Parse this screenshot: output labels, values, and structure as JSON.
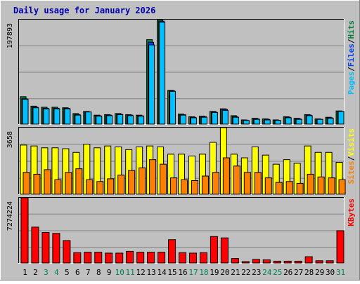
{
  "title": "Daily usage for January 2026",
  "colors": {
    "background": "#C0C0C0",
    "plot": "#C0C0C0",
    "title": "#0000B0",
    "hits": "#008040",
    "files": "#0040FF",
    "pages": "#00C0FF",
    "visits": "#FFFF00",
    "sites": "#FF8000",
    "kbytes": "#FF0000",
    "weekend_day": "#00805C",
    "weekday_day": "#000000"
  },
  "chart_data": [
    {
      "type": "bar",
      "panel": "hits-files-pages",
      "axis_max_label": "197893",
      "ylim": [
        0,
        197893
      ],
      "legend": [
        {
          "name": "Pages",
          "color": "#00C0FF"
        },
        {
          "name": "Files",
          "color": "#0040FF"
        },
        {
          "name": "Hits",
          "color": "#008040"
        }
      ],
      "legend_separator": "/",
      "categories": [
        "1",
        "2",
        "3",
        "4",
        "5",
        "6",
        "7",
        "8",
        "9",
        "10",
        "11",
        "12",
        "13",
        "14",
        "15",
        "16",
        "17",
        "18",
        "19",
        "20",
        "21",
        "22",
        "23",
        "24",
        "25",
        "26",
        "27",
        "28",
        "29",
        "30",
        "31"
      ],
      "series": [
        {
          "name": "Hits",
          "values": [
            52000,
            34000,
            32000,
            32000,
            31000,
            20000,
            24000,
            17000,
            18000,
            20000,
            18000,
            17000,
            160000,
            197893,
            64000,
            19000,
            14000,
            15000,
            24000,
            29000,
            16000,
            8000,
            11000,
            10000,
            8000,
            14000,
            11000,
            18000,
            10000,
            13000,
            25000
          ]
        },
        {
          "name": "Files",
          "values": [
            48000,
            32000,
            30000,
            30000,
            30000,
            18000,
            23000,
            16000,
            17000,
            19000,
            17000,
            16000,
            155000,
            195000,
            63000,
            18000,
            13000,
            14000,
            23000,
            28000,
            14000,
            7000,
            10000,
            9000,
            7000,
            13000,
            10000,
            17000,
            9000,
            12000,
            24000
          ]
        },
        {
          "name": "Pages",
          "values": [
            47000,
            31000,
            29000,
            29000,
            29000,
            17000,
            23000,
            15000,
            16000,
            18000,
            16000,
            15000,
            150000,
            193000,
            62000,
            17000,
            12000,
            13000,
            22000,
            26000,
            13000,
            7000,
            9000,
            8000,
            7000,
            12000,
            9000,
            16000,
            9000,
            11000,
            24000
          ]
        }
      ]
    },
    {
      "type": "bar",
      "panel": "visits-sites",
      "axis_max_label": "3658",
      "ylim": [
        0,
        3658
      ],
      "legend": [
        {
          "name": "Sites",
          "color": "#FF8000"
        },
        {
          "name": "Visits",
          "color": "#FFFF00"
        }
      ],
      "legend_separator": "/",
      "categories": [
        "1",
        "2",
        "3",
        "4",
        "5",
        "6",
        "7",
        "8",
        "9",
        "10",
        "11",
        "12",
        "13",
        "14",
        "15",
        "16",
        "17",
        "18",
        "19",
        "20",
        "21",
        "22",
        "23",
        "24",
        "25",
        "26",
        "27",
        "28",
        "29",
        "30",
        "31"
      ],
      "series": [
        {
          "name": "Visits",
          "values": [
            2700,
            2650,
            2550,
            2550,
            2500,
            2300,
            2750,
            2550,
            2650,
            2600,
            2450,
            2600,
            2650,
            2600,
            2200,
            2200,
            2100,
            2200,
            2850,
            3658,
            2200,
            2000,
            2600,
            2150,
            1650,
            1900,
            1700,
            2650,
            2300,
            2300,
            1750
          ]
        },
        {
          "name": "Sites",
          "values": [
            1200,
            1100,
            1350,
            800,
            1200,
            1400,
            800,
            700,
            850,
            1050,
            1300,
            1450,
            1900,
            1650,
            900,
            800,
            750,
            1000,
            1200,
            2000,
            1550,
            1200,
            1200,
            900,
            650,
            700,
            600,
            1100,
            950,
            900,
            800
          ]
        }
      ]
    },
    {
      "type": "bar",
      "panel": "kbytes",
      "axis_max_label": "7274224",
      "ylim": [
        0,
        7274224
      ],
      "legend": [
        {
          "name": "KBytes",
          "color": "#FF0000"
        }
      ],
      "categories": [
        "1",
        "2",
        "3",
        "4",
        "5",
        "6",
        "7",
        "8",
        "9",
        "10",
        "11",
        "12",
        "13",
        "14",
        "15",
        "16",
        "17",
        "18",
        "19",
        "20",
        "21",
        "22",
        "23",
        "24",
        "25",
        "26",
        "27",
        "28",
        "29",
        "30",
        "31"
      ],
      "series": [
        {
          "name": "KBytes",
          "values": [
            7274224,
            4000000,
            3400000,
            3300000,
            2500000,
            1150000,
            1200000,
            1200000,
            1100000,
            1100000,
            1300000,
            1200000,
            1200000,
            1200000,
            2600000,
            1150000,
            1100000,
            1150000,
            2950000,
            2800000,
            500000,
            150000,
            400000,
            350000,
            200000,
            200000,
            200000,
            700000,
            250000,
            250000,
            3600000
          ]
        }
      ]
    }
  ],
  "x_axis": {
    "labels": [
      "1",
      "2",
      "3",
      "4",
      "5",
      "6",
      "7",
      "8",
      "9",
      "10",
      "11",
      "12",
      "13",
      "14",
      "15",
      "16",
      "17",
      "18",
      "19",
      "20",
      "21",
      "22",
      "23",
      "24",
      "25",
      "26",
      "27",
      "28",
      "29",
      "30",
      "31"
    ],
    "weekend": [
      3,
      4,
      10,
      11,
      17,
      18,
      24,
      25,
      31
    ]
  }
}
